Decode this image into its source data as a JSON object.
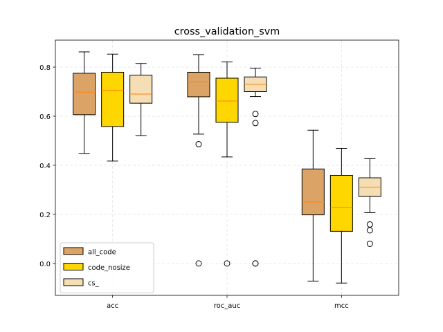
{
  "chart_data": {
    "type": "box",
    "title": "cross_validation_svm",
    "xlabel": "",
    "ylabel": "",
    "categories": [
      "acc",
      "roc_auc",
      "mcc"
    ],
    "ylim": [
      -0.13,
      0.91
    ],
    "yticks": [
      0.0,
      0.2,
      0.4,
      0.6,
      0.8
    ],
    "ytick_labels": [
      "0.0",
      "0.2",
      "0.4",
      "0.6",
      "0.8"
    ],
    "grid": true,
    "legend_position": "lower-left",
    "median_color": "#ff7f0e",
    "series": [
      {
        "name": "all_code",
        "color": "#dba466",
        "boxes": [
          {
            "whislo": 0.448,
            "q1": 0.606,
            "med": 0.698,
            "q3": 0.775,
            "whishi": 0.862,
            "fliers": []
          },
          {
            "whislo": 0.527,
            "q1": 0.679,
            "med": 0.74,
            "q3": 0.779,
            "whishi": 0.851,
            "fliers": [
              0.486,
              0.0
            ]
          },
          {
            "whislo": -0.072,
            "q1": 0.198,
            "med": 0.25,
            "q3": 0.385,
            "whishi": 0.543,
            "fliers": []
          }
        ]
      },
      {
        "name": "code_nosize",
        "color": "#ffd700",
        "boxes": [
          {
            "whislo": 0.417,
            "q1": 0.558,
            "med": 0.705,
            "q3": 0.779,
            "whishi": 0.853,
            "fliers": []
          },
          {
            "whislo": 0.434,
            "q1": 0.575,
            "med": 0.662,
            "q3": 0.755,
            "whishi": 0.821,
            "fliers": [
              0.0
            ]
          },
          {
            "whislo": -0.08,
            "q1": 0.131,
            "med": 0.228,
            "q3": 0.359,
            "whishi": 0.469,
            "fliers": []
          }
        ]
      },
      {
        "name": "cs_",
        "color": "#f5deb3",
        "boxes": [
          {
            "whislo": 0.521,
            "q1": 0.653,
            "med": 0.69,
            "q3": 0.767,
            "whishi": 0.815,
            "fliers": []
          },
          {
            "whislo": 0.68,
            "q1": 0.7,
            "med": 0.73,
            "q3": 0.76,
            "whishi": 0.796,
            "fliers": [
              0.609,
              0.572,
              0.0,
              0.0
            ]
          },
          {
            "whislo": 0.207,
            "q1": 0.273,
            "med": 0.311,
            "q3": 0.349,
            "whishi": 0.427,
            "fliers": [
              0.159,
              0.135,
              0.08
            ]
          }
        ]
      }
    ]
  }
}
